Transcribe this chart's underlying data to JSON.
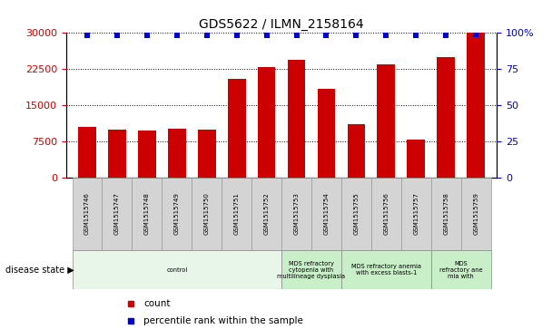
{
  "title": "GDS5622 / ILMN_2158164",
  "samples": [
    "GSM1515746",
    "GSM1515747",
    "GSM1515748",
    "GSM1515749",
    "GSM1515750",
    "GSM1515751",
    "GSM1515752",
    "GSM1515753",
    "GSM1515754",
    "GSM1515755",
    "GSM1515756",
    "GSM1515757",
    "GSM1515758",
    "GSM1515759"
  ],
  "counts": [
    10500,
    10000,
    9800,
    10100,
    10000,
    20500,
    23000,
    24500,
    18500,
    11000,
    23500,
    7800,
    25000,
    30000
  ],
  "percentile_ranks": [
    98,
    98,
    98,
    98,
    98,
    98,
    98,
    98,
    98,
    98,
    98,
    98,
    98,
    99
  ],
  "bar_color": "#cc0000",
  "dot_color": "#0000cc",
  "ylim_left": [
    0,
    30000
  ],
  "ylim_right": [
    0,
    100
  ],
  "yticks_left": [
    0,
    7500,
    15000,
    22500,
    30000
  ],
  "yticks_right": [
    0,
    25,
    50,
    75,
    100
  ],
  "disease_groups": [
    {
      "label": "control",
      "start": 0,
      "end": 7,
      "color": "#e8f5e9"
    },
    {
      "label": "MDS refractory\ncytopenia with\nmultilineage dysplasia",
      "start": 7,
      "end": 9,
      "color": "#c8efc8"
    },
    {
      "label": "MDS refractory anemia\nwith excess blasts-1",
      "start": 9,
      "end": 12,
      "color": "#c8efc8"
    },
    {
      "label": "MDS\nrefractory ane\nmia with",
      "start": 12,
      "end": 14,
      "color": "#c8efc8"
    }
  ],
  "disease_state_label": "disease state",
  "legend_count_label": "count",
  "legend_percentile_label": "percentile rank within the sample",
  "tick_label_color_left": "#cc0000",
  "tick_label_color_right": "#0000cc",
  "bar_width": 0.6,
  "fig_width": 6.08,
  "fig_height": 3.63,
  "dpi": 100
}
